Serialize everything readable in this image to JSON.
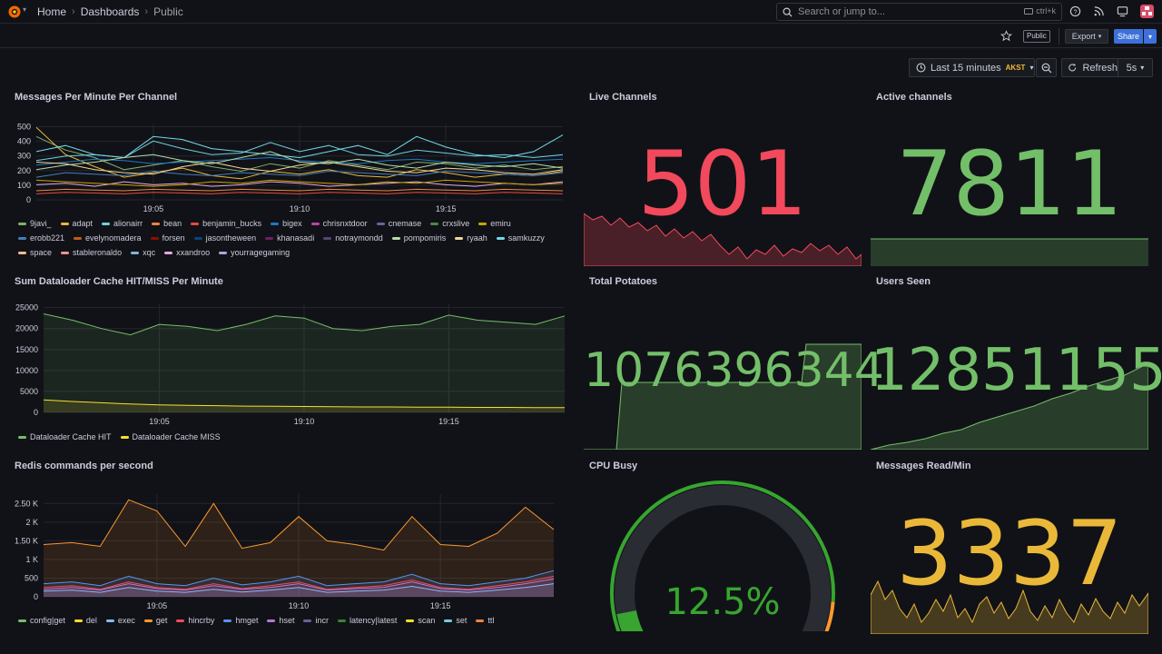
{
  "nav": {
    "breadcrumbs": [
      "Home",
      "Dashboards",
      "Public"
    ],
    "search_placeholder": "Search or jump to...",
    "search_shortcut": "ctrl+k"
  },
  "toolbar": {
    "public_tag": "Public",
    "export_label": "Export",
    "share_label": "Share",
    "time_range": "Last 15 minutes",
    "timezone": "AKST",
    "refresh_label": "Refresh",
    "refresh_interval": "5s"
  },
  "colors": {
    "red": "#f2495c",
    "green": "#73bf69",
    "yellow": "#fade2a",
    "orange": "#ff9830",
    "gold": "#eab839",
    "blue": "#5794f2",
    "purple": "#b877d9"
  },
  "stats": {
    "live_channels": {
      "title": "Live Channels",
      "value": "501",
      "color": "#f2495c"
    },
    "active_channels": {
      "title": "Active channels",
      "value": "7811",
      "color": "#73bf69"
    },
    "total_potatoes": {
      "title": "Total Potatoes",
      "value": "1076396344",
      "color": "#73bf69"
    },
    "users_seen": {
      "title": "Users Seen",
      "value": "12851155",
      "color": "#73bf69"
    },
    "cpu_busy": {
      "title": "CPU Busy",
      "value": "12.5%",
      "fraction": 0.125,
      "color": "#37a52f"
    },
    "messages_read": {
      "title": "Messages Read/Min",
      "value": "3337",
      "color": "#eab839"
    }
  },
  "panels": {
    "messages": {
      "title": "Messages Per Minute Per Channel",
      "legend": [
        {
          "name": "9javi_",
          "color": "#7eb26d"
        },
        {
          "name": "adapt",
          "color": "#eab839"
        },
        {
          "name": "alionairr",
          "color": "#6ed0e0"
        },
        {
          "name": "bean",
          "color": "#ef843c"
        },
        {
          "name": "benjamin_bucks",
          "color": "#e24d42"
        },
        {
          "name": "bigex",
          "color": "#1f78c1"
        },
        {
          "name": "chrisnxtdoor",
          "color": "#ba43a9"
        },
        {
          "name": "cnemase",
          "color": "#705da0"
        },
        {
          "name": "crxslive",
          "color": "#508642"
        },
        {
          "name": "emiru",
          "color": "#cca300"
        },
        {
          "name": "erobb221",
          "color": "#447ebc"
        },
        {
          "name": "evelynomadera",
          "color": "#c15c17"
        },
        {
          "name": "forsen",
          "color": "#890f02"
        },
        {
          "name": "jasontheween",
          "color": "#0a437c"
        },
        {
          "name": "khanasadi",
          "color": "#6d1f62"
        },
        {
          "name": "notraymondd",
          "color": "#584477"
        },
        {
          "name": "pompomiris",
          "color": "#b7dbab"
        },
        {
          "name": "ryaah",
          "color": "#f4d598"
        },
        {
          "name": "samkuzzy",
          "color": "#70dbed"
        },
        {
          "name": "space",
          "color": "#f9ba8f"
        },
        {
          "name": "stableronaldo",
          "color": "#f29191"
        },
        {
          "name": "xqc",
          "color": "#82b5d8"
        },
        {
          "name": "xxandroo",
          "color": "#e5a8e2"
        },
        {
          "name": "yourragegaming",
          "color": "#aea2e0"
        }
      ]
    },
    "dataloader": {
      "title": "Sum Dataloader Cache HIT/MISS Per Minute",
      "legend": [
        {
          "name": "Dataloader Cache HIT",
          "color": "#73bf69"
        },
        {
          "name": "Dataloader Cache MISS",
          "color": "#fade2a"
        }
      ]
    },
    "redis": {
      "title": "Redis commands per second",
      "legend": [
        {
          "name": "config|get",
          "color": "#73bf69"
        },
        {
          "name": "del",
          "color": "#fade2a"
        },
        {
          "name": "exec",
          "color": "#8ab8ff"
        },
        {
          "name": "get",
          "color": "#ff9830"
        },
        {
          "name": "hincrby",
          "color": "#f2495c"
        },
        {
          "name": "hmget",
          "color": "#5794f2"
        },
        {
          "name": "hset",
          "color": "#b877d9"
        },
        {
          "name": "incr",
          "color": "#705da0"
        },
        {
          "name": "latency|latest",
          "color": "#37872d"
        },
        {
          "name": "scan",
          "color": "#fade2a"
        },
        {
          "name": "set",
          "color": "#6ed0e0"
        },
        {
          "name": "ttl",
          "color": "#ef843c"
        }
      ]
    }
  },
  "chart_data": [
    {
      "type": "line",
      "title": "Messages Per Minute Per Channel",
      "x": [
        "19:01",
        "19:02",
        "19:03",
        "19:04",
        "19:05",
        "19:06",
        "19:07",
        "19:08",
        "19:09",
        "19:10",
        "19:11",
        "19:12",
        "19:13",
        "19:14",
        "19:15",
        "19:16",
        "19:17",
        "19:18",
        "19:19"
      ],
      "x_ticks": [
        "19:05",
        "19:10",
        "19:15"
      ],
      "y_ticks": [
        "0",
        "100",
        "200",
        "300",
        "400",
        "500"
      ],
      "ylim": [
        0,
        500
      ],
      "series": [
        {
          "name": "9javi_",
          "values": [
            420,
            330,
            280,
            200,
            230,
            260,
            220,
            190,
            240,
            210,
            260,
            230,
            200,
            250,
            240,
            210,
            230,
            200,
            220
          ]
        },
        {
          "name": "adapt",
          "values": [
            480,
            300,
            220,
            150,
            180,
            210,
            160,
            140,
            190,
            170,
            200,
            160,
            150,
            200,
            180,
            150,
            170,
            160,
            190
          ]
        },
        {
          "name": "alionairr",
          "values": [
            260,
            290,
            300,
            280,
            390,
            340,
            300,
            310,
            380,
            320,
            360,
            300,
            290,
            330,
            310,
            290,
            300,
            280,
            300
          ]
        },
        {
          "name": "bean",
          "values": [
            60,
            70,
            65,
            60,
            70,
            65,
            60,
            70,
            65,
            60,
            70,
            65,
            60,
            70,
            65,
            60,
            70,
            65,
            60
          ]
        },
        {
          "name": "benjamin_bucks",
          "values": [
            40,
            50,
            45,
            40,
            50,
            45,
            40,
            50,
            45,
            40,
            50,
            45,
            40,
            50,
            45,
            40,
            50,
            45,
            40
          ]
        },
        {
          "name": "bigex",
          "values": [
            230,
            250,
            270,
            260,
            240,
            250,
            260,
            270,
            280,
            260,
            250,
            240,
            260,
            270,
            250,
            240,
            250,
            260,
            270
          ]
        },
        {
          "name": "erobb221",
          "values": [
            150,
            180,
            170,
            160,
            190,
            170,
            160,
            180,
            170,
            160,
            190,
            180,
            170,
            160,
            190,
            180,
            170,
            160,
            180
          ]
        },
        {
          "name": "ryaah",
          "values": [
            250,
            240,
            200,
            180,
            170,
            220,
            250,
            210,
            190,
            230,
            250,
            220,
            190,
            180,
            210,
            200,
            180,
            170,
            200
          ]
        },
        {
          "name": "samkuzzy",
          "values": [
            320,
            360,
            300,
            280,
            420,
            400,
            340,
            320,
            300,
            280,
            320,
            360,
            300,
            420,
            350,
            300,
            280,
            320,
            430
          ]
        },
        {
          "name": "xxandroo",
          "values": [
            100,
            110,
            90,
            120,
            100,
            110,
            90,
            100,
            120,
            110,
            90,
            100,
            110,
            120,
            100,
            90,
            110,
            100,
            120
          ]
        },
        {
          "name": "pompomiris",
          "values": [
            200,
            230,
            250,
            280,
            300,
            260,
            240,
            280,
            320,
            250,
            240,
            270,
            230,
            210,
            250,
            230,
            220,
            240,
            210
          ]
        },
        {
          "name": "emiru",
          "values": [
            130,
            120,
            110,
            100,
            90,
            100,
            120,
            110,
            130,
            120,
            110,
            100,
            120,
            110,
            130,
            120,
            110,
            100,
            110
          ]
        }
      ]
    },
    {
      "type": "area",
      "title": "Sum Dataloader Cache HIT/MISS Per Minute",
      "x": [
        "19:01",
        "19:02",
        "19:03",
        "19:04",
        "19:05",
        "19:06",
        "19:07",
        "19:08",
        "19:09",
        "19:10",
        "19:11",
        "19:12",
        "19:13",
        "19:14",
        "19:15",
        "19:16",
        "19:17",
        "19:18",
        "19:19"
      ],
      "x_ticks": [
        "19:05",
        "19:10",
        "19:15"
      ],
      "y_ticks": [
        "0",
        "5000",
        "10000",
        "15000",
        "20000",
        "25000"
      ],
      "ylim": [
        0,
        26000
      ],
      "series": [
        {
          "name": "Dataloader Cache HIT",
          "values": [
            23500,
            22000,
            20000,
            18500,
            21000,
            20500,
            19500,
            21000,
            23000,
            22500,
            20000,
            19500,
            20500,
            21000,
            23200,
            22000,
            21500,
            21000,
            23000
          ]
        },
        {
          "name": "Dataloader Cache MISS",
          "values": [
            3000,
            2600,
            2300,
            2000,
            1800,
            1700,
            1600,
            1500,
            1450,
            1400,
            1350,
            1300,
            1300,
            1250,
            1250,
            1200,
            1200,
            1150,
            1150
          ]
        }
      ]
    },
    {
      "type": "area",
      "title": "Redis commands per second",
      "x": [
        "19:01",
        "19:02",
        "19:03",
        "19:04",
        "19:05",
        "19:06",
        "19:07",
        "19:08",
        "19:09",
        "19:10",
        "19:11",
        "19:12",
        "19:13",
        "19:14",
        "19:15",
        "19:16",
        "19:17",
        "19:18",
        "19:19"
      ],
      "x_ticks": [
        "19:05",
        "19:10",
        "19:15"
      ],
      "y_ticks": [
        "0",
        "500",
        "1 K",
        "1.50 K",
        "2 K",
        "2.50 K"
      ],
      "ylim": [
        0,
        2750
      ],
      "series": [
        {
          "name": "get",
          "values": [
            1400,
            1450,
            1350,
            2600,
            2300,
            1350,
            2500,
            1300,
            1450,
            2150,
            1500,
            1400,
            1250,
            2150,
            1400,
            1350,
            1700,
            2400,
            1800
          ]
        },
        {
          "name": "hmget",
          "values": [
            350,
            400,
            300,
            550,
            350,
            300,
            500,
            320,
            400,
            550,
            300,
            350,
            400,
            600,
            350,
            300,
            400,
            500,
            700
          ]
        },
        {
          "name": "hincrby",
          "values": [
            250,
            300,
            200,
            400,
            250,
            200,
            350,
            220,
            300,
            400,
            200,
            250,
            300,
            450,
            250,
            200,
            300,
            400,
            550
          ]
        },
        {
          "name": "hset",
          "values": [
            200,
            250,
            180,
            350,
            220,
            180,
            300,
            200,
            250,
            350,
            180,
            220,
            250,
            400,
            220,
            180,
            250,
            350,
            480
          ]
        },
        {
          "name": "exec",
          "values": [
            150,
            180,
            120,
            250,
            150,
            120,
            200,
            130,
            180,
            250,
            120,
            150,
            180,
            280,
            150,
            120,
            180,
            250,
            350
          ]
        }
      ]
    }
  ]
}
